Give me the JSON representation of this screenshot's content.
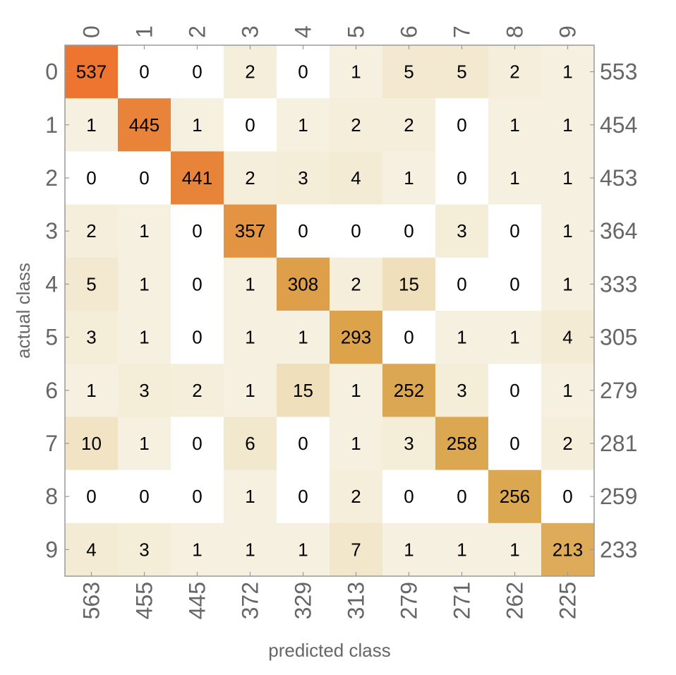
{
  "chart_data": {
    "type": "heatmap",
    "title": "",
    "xlabel": "predicted class",
    "ylabel": "actual class",
    "x_categories": [
      "0",
      "1",
      "2",
      "3",
      "4",
      "5",
      "6",
      "7",
      "8",
      "9"
    ],
    "y_categories": [
      "0",
      "1",
      "2",
      "3",
      "4",
      "5",
      "6",
      "7",
      "8",
      "9"
    ],
    "values": [
      [
        537,
        0,
        0,
        2,
        0,
        1,
        5,
        5,
        2,
        1
      ],
      [
        1,
        445,
        1,
        0,
        1,
        2,
        2,
        0,
        1,
        1
      ],
      [
        0,
        0,
        441,
        2,
        3,
        4,
        1,
        0,
        1,
        1
      ],
      [
        2,
        1,
        0,
        357,
        0,
        0,
        0,
        3,
        0,
        1
      ],
      [
        5,
        1,
        0,
        1,
        308,
        2,
        15,
        0,
        0,
        1
      ],
      [
        3,
        1,
        0,
        1,
        1,
        293,
        0,
        1,
        1,
        4
      ],
      [
        1,
        3,
        2,
        1,
        15,
        1,
        252,
        3,
        0,
        1
      ],
      [
        10,
        1,
        0,
        6,
        0,
        1,
        3,
        258,
        0,
        2
      ],
      [
        0,
        0,
        0,
        1,
        0,
        2,
        0,
        0,
        256,
        0
      ],
      [
        4,
        3,
        1,
        1,
        1,
        7,
        1,
        1,
        1,
        213
      ]
    ],
    "row_totals": [
      "553",
      "454",
      "453",
      "364",
      "333",
      "305",
      "279",
      "281",
      "259",
      "233"
    ],
    "column_totals": [
      "563",
      "455",
      "445",
      "372",
      "329",
      "313",
      "279",
      "271",
      "262",
      "225"
    ],
    "colors": {
      "zero": "#ffffff",
      "low": "#f6f2e2",
      "mid": "#dba44c",
      "high": "#ee7530",
      "frame": "#999999",
      "tick_text": "#666666"
    }
  }
}
